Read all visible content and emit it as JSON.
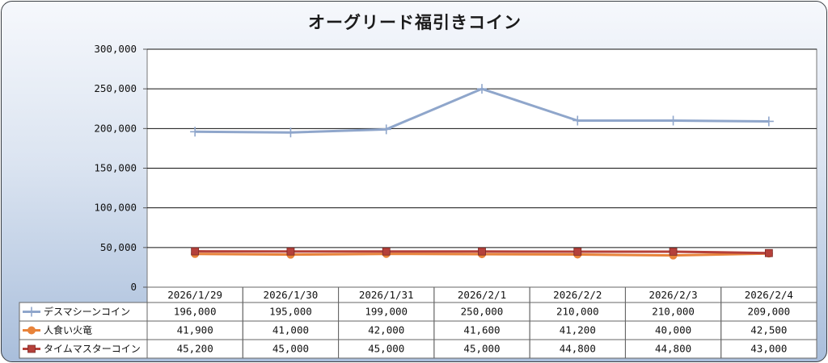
{
  "chart_data": {
    "type": "line",
    "title": "オーグリード福引きコイン",
    "categories": [
      "2026/1/29",
      "2026/1/30",
      "2026/1/31",
      "2026/2/1",
      "2026/2/2",
      "2026/2/3",
      "2026/2/4"
    ],
    "ylim": [
      0,
      300000
    ],
    "yticks": [
      0,
      50000,
      100000,
      150000,
      200000,
      250000,
      300000
    ],
    "ytick_labels": [
      "0",
      "50,000",
      "100,000",
      "150,000",
      "200,000",
      "250,000",
      "300,000"
    ],
    "grid": true,
    "legend": "data-table-left",
    "series": [
      {
        "name": "デスマシーンコイン",
        "values": [
          196000,
          195000,
          199000,
          250000,
          210000,
          210000,
          209000
        ],
        "labels": [
          "196,000",
          "195,000",
          "199,000",
          "250,000",
          "210,000",
          "210,000",
          "209,000"
        ],
        "color": "#8fa6cb",
        "marker": "plus"
      },
      {
        "name": "人食い火竜",
        "values": [
          41900,
          41000,
          42000,
          41600,
          41200,
          40000,
          42500
        ],
        "labels": [
          "41,900",
          "41,000",
          "42,000",
          "41,600",
          "41,200",
          "40,000",
          "42,500"
        ],
        "color": "#e8833a",
        "marker": "circle"
      },
      {
        "name": "タイムマスターコイン",
        "values": [
          45200,
          45000,
          45000,
          45000,
          44800,
          44800,
          43000
        ],
        "labels": [
          "45,200",
          "45,000",
          "45,000",
          "45,000",
          "44,800",
          "44,800",
          "43,000"
        ],
        "color": "#b5403a",
        "marker": "square"
      }
    ]
  }
}
